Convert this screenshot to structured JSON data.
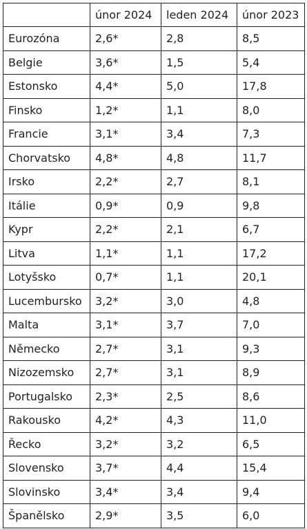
{
  "table": {
    "headers": [
      "",
      "únor 2024",
      "leden 2024",
      "únor 2023"
    ],
    "rows": [
      [
        "Eurozóna",
        "2,6*",
        "2,8",
        "8,5"
      ],
      [
        "Belgie",
        "3,6*",
        "1,5",
        "5,4"
      ],
      [
        "Estonsko",
        "4,4*",
        "5,0",
        "17,8"
      ],
      [
        "Finsko",
        "1,2*",
        "1,1",
        "8,0"
      ],
      [
        "Francie",
        "3,1*",
        "3,4",
        "7,3"
      ],
      [
        "Chorvatsko",
        "4,8*",
        "4,8",
        "11,7"
      ],
      [
        "Irsko",
        "2,2*",
        "2,7",
        "8,1"
      ],
      [
        "Itálie",
        "0,9*",
        "0,9",
        "9,8"
      ],
      [
        "Kypr",
        "2,2*",
        "2,1",
        "6,7"
      ],
      [
        "Litva",
        "1,1*",
        "1,1",
        "17,2"
      ],
      [
        "Lotyšsko",
        "0,7*",
        "1,1",
        "20,1"
      ],
      [
        "Lucembursko",
        "3,2*",
        "3,0",
        "4,8"
      ],
      [
        "Malta",
        "3,1*",
        "3,7",
        "7,0"
      ],
      [
        "Německo",
        "2,7*",
        "3,1",
        "9,3"
      ],
      [
        "Nizozemsko",
        "2,7*",
        "3,1",
        "8,9"
      ],
      [
        "Portugalsko",
        "2,3*",
        "2,5",
        "8,6"
      ],
      [
        "Rakousko",
        "4,2*",
        "4,3",
        "11,0"
      ],
      [
        "Řecko",
        "3,2*",
        "3,2",
        "6,5"
      ],
      [
        "Slovensko",
        "3,7*",
        "4,4",
        "15,4"
      ],
      [
        "Slovinsko",
        "3,4*",
        "3,4",
        "9,4"
      ],
      [
        "Španělsko",
        "2,9*",
        "3,5",
        "6,0"
      ]
    ]
  }
}
